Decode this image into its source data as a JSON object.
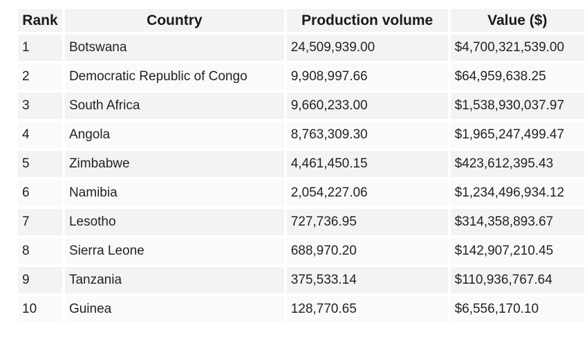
{
  "table": {
    "headers": [
      "Rank",
      "Country",
      "Production volume",
      "Value ($)"
    ],
    "rows": [
      [
        "1",
        "Botswana",
        "24,509,939.00",
        "$4,700,321,539.00"
      ],
      [
        "2",
        "Democratic Republic of Congo",
        "9,908,997.66",
        "$64,959,638.25"
      ],
      [
        "3",
        "South Africa",
        "9,660,233.00",
        "$1,538,930,037.97"
      ],
      [
        "4",
        "Angola",
        "8,763,309.30",
        "$1,965,247,499.47"
      ],
      [
        "5",
        "Zimbabwe",
        "4,461,450.15",
        "$423,612,395.43"
      ],
      [
        "6",
        "Namibia",
        "2,054,227.06",
        "$1,234,496,934.12"
      ],
      [
        "7",
        "Lesotho",
        "727,736.95",
        "$314,358,893.67"
      ],
      [
        "8",
        "Sierra Leone",
        "688,970.20",
        "$142,907,210.45"
      ],
      [
        "9",
        "Tanzania",
        "375,533.14",
        "$110,936,767.64"
      ],
      [
        "10",
        "Guinea",
        "128,770.65",
        "$6,556,170.10"
      ]
    ]
  }
}
